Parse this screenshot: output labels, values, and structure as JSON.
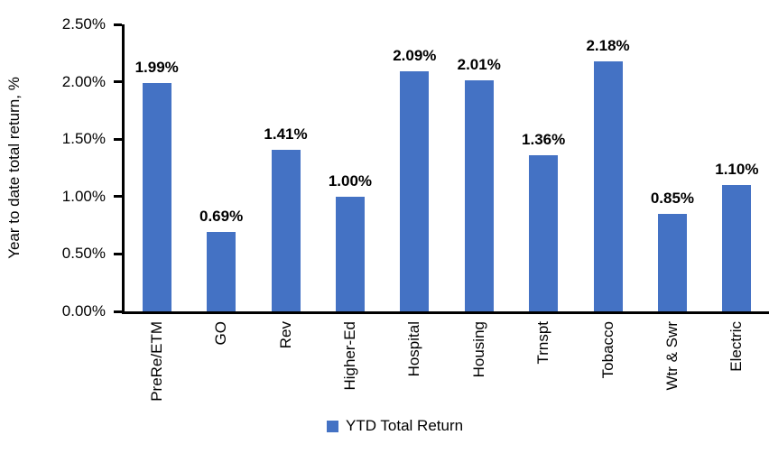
{
  "chart_data": {
    "type": "bar",
    "title": "",
    "categories": [
      "PreRe/ETM",
      "GO",
      "Rev",
      "Higher-Ed",
      "Hospital",
      "Housing",
      "Trnspt",
      "Tobacco",
      "Wtr & Swr",
      "Electric"
    ],
    "values": [
      1.99,
      0.69,
      1.41,
      1.0,
      2.09,
      2.01,
      1.36,
      2.18,
      0.85,
      1.1
    ],
    "value_labels": [
      "1.99%",
      "0.69%",
      "1.41%",
      "1.00%",
      "2.09%",
      "2.01%",
      "1.36%",
      "2.18%",
      "0.85%",
      "1.10%"
    ],
    "xlabel": "",
    "ylabel": "Year to date total return, %",
    "ylim": [
      0,
      2.5
    ],
    "ytick_values": [
      0,
      0.5,
      1.0,
      1.5,
      2.0,
      2.5
    ],
    "ytick_labels": [
      "0.00%",
      "0.50%",
      "1.00%",
      "1.50%",
      "2.00%",
      "2.50%"
    ],
    "legend": [
      "YTD Total Return"
    ],
    "legend_position": "bottom",
    "grid": false,
    "bar_color": "#4472C4",
    "axis_color": "#000000",
    "text_color": "#000000"
  }
}
